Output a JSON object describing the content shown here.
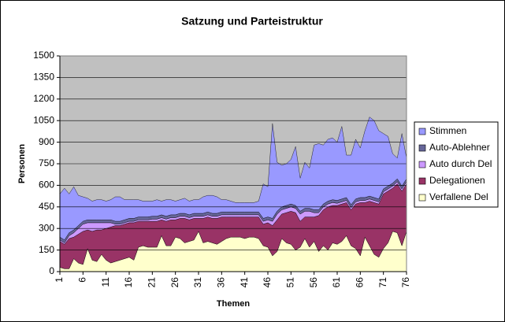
{
  "chart_data": {
    "type": "stacked_area",
    "title": "Satzung und Parteistruktur",
    "x_label": "Themen",
    "y_label": "Personen",
    "x": [
      1,
      2,
      3,
      4,
      5,
      6,
      7,
      8,
      9,
      10,
      11,
      12,
      13,
      14,
      15,
      16,
      17,
      18,
      19,
      20,
      21,
      22,
      23,
      24,
      25,
      26,
      27,
      28,
      29,
      30,
      31,
      32,
      33,
      34,
      35,
      36,
      37,
      38,
      39,
      40,
      41,
      42,
      43,
      44,
      45,
      46,
      47,
      48,
      49,
      50,
      51,
      52,
      53,
      54,
      55,
      56,
      57,
      58,
      59,
      60,
      61,
      62,
      63,
      64,
      65,
      66,
      67,
      68,
      69,
      70,
      71,
      72,
      73,
      74,
      75,
      76
    ],
    "xlim": [
      1,
      76
    ],
    "xticks": [
      1,
      6,
      11,
      16,
      21,
      26,
      31,
      36,
      41,
      46,
      51,
      56,
      61,
      66,
      71,
      76
    ],
    "ylim": [
      0,
      1500
    ],
    "yticks": [
      0,
      150,
      300,
      450,
      600,
      750,
      900,
      1050,
      1200,
      1350,
      1500
    ],
    "grid": true,
    "legend": "right",
    "plot_background": "#c0c0c0",
    "series": [
      {
        "name": "Verfallene Del",
        "color": "#ffffcc",
        "values": [
          30,
          20,
          20,
          90,
          60,
          50,
          160,
          80,
          70,
          120,
          80,
          60,
          70,
          80,
          90,
          100,
          80,
          170,
          180,
          170,
          170,
          170,
          250,
          180,
          180,
          240,
          230,
          200,
          210,
          220,
          280,
          200,
          210,
          200,
          190,
          210,
          230,
          240,
          240,
          240,
          230,
          240,
          240,
          230,
          180,
          170,
          110,
          140,
          230,
          200,
          190,
          150,
          170,
          230,
          170,
          210,
          140,
          180,
          150,
          200,
          190,
          210,
          250,
          180,
          160,
          110,
          240,
          180,
          120,
          100,
          160,
          200,
          280,
          270,
          180,
          280
        ]
      },
      {
        "name": "Delegationen",
        "color": "#993366",
        "values": [
          180,
          170,
          210,
          150,
          200,
          230,
          130,
          200,
          220,
          170,
          220,
          250,
          250,
          240,
          240,
          240,
          260,
          180,
          170,
          180,
          180,
          180,
          110,
          170,
          180,
          120,
          140,
          170,
          150,
          150,
          90,
          170,
          170,
          170,
          180,
          170,
          150,
          140,
          140,
          140,
          150,
          140,
          140,
          150,
          150,
          170,
          210,
          220,
          170,
          210,
          230,
          260,
          180,
          150,
          210,
          170,
          250,
          250,
          300,
          260,
          270,
          260,
          230,
          250,
          310,
          370,
          240,
          310,
          360,
          370,
          380,
          360,
          300,
          340,
          380,
          330
        ]
      },
      {
        "name": "Auto durch Del",
        "color": "#cc99ff",
        "values": [
          10,
          10,
          20,
          30,
          40,
          50,
          50,
          60,
          50,
          50,
          40,
          30,
          10,
          10,
          10,
          10,
          10,
          10,
          10,
          10,
          15,
          15,
          15,
          15,
          15,
          15,
          15,
          15,
          15,
          15,
          15,
          15,
          15,
          15,
          15,
          15,
          15,
          15,
          15,
          15,
          15,
          15,
          15,
          15,
          20,
          20,
          30,
          40,
          30,
          30,
          30,
          30,
          50,
          40,
          40,
          30,
          20,
          20,
          20,
          20,
          15,
          15,
          15,
          15,
          15,
          15,
          15,
          15,
          15,
          15,
          15,
          15,
          15,
          15,
          15,
          15
        ]
      },
      {
        "name": "Auto-Ablehner",
        "color": "#666699",
        "values": [
          20,
          20,
          20,
          20,
          20,
          20,
          20,
          20,
          20,
          20,
          20,
          20,
          20,
          20,
          20,
          20,
          20,
          20,
          20,
          20,
          20,
          20,
          20,
          20,
          20,
          20,
          20,
          20,
          20,
          20,
          20,
          20,
          20,
          20,
          20,
          20,
          20,
          20,
          20,
          20,
          20,
          20,
          20,
          20,
          20,
          20,
          20,
          20,
          20,
          20,
          20,
          20,
          20,
          20,
          20,
          20,
          20,
          20,
          20,
          20,
          20,
          20,
          20,
          20,
          20,
          20,
          20,
          20,
          20,
          20,
          20,
          20,
          20,
          20,
          20,
          20
        ]
      },
      {
        "name": "Stimmen",
        "color": "#9999ff",
        "values": [
          300,
          360,
          270,
          300,
          210,
          170,
          150,
          130,
          140,
          140,
          130,
          140,
          170,
          170,
          140,
          130,
          130,
          120,
          110,
          110,
          105,
          115,
          95,
          115,
          105,
          95,
          95,
          105,
          95,
          95,
          95,
          115,
          115,
          125,
          115,
          85,
          85,
          75,
          65,
          65,
          65,
          65,
          65,
          75,
          240,
          210,
          660,
          340,
          290,
          290,
          310,
          410,
          230,
          320,
          280,
          450,
          460,
          410,
          430,
          430,
          405,
          505,
          295,
          345,
          415,
          345,
          465,
          550,
          535,
          475,
          385,
          345,
          205,
          145,
          365,
          145
        ]
      }
    ]
  }
}
